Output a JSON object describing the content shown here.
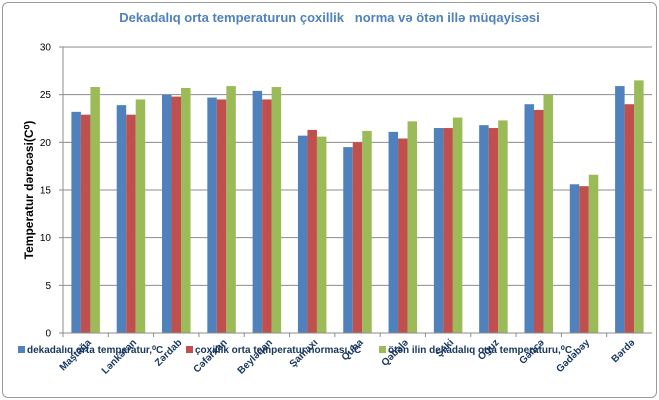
{
  "chart_data": {
    "type": "bar",
    "title": "Dekadalıq orta temperaturun çoxillik   norma və ötən illə müqayisəsi",
    "ylabel": "Temperatur dərəcəsi(C⁰)",
    "xlabel": "",
    "ylim": [
      0,
      30
    ],
    "yticks": [
      0,
      5,
      10,
      15,
      20,
      25,
      30
    ],
    "grid": true,
    "legend_position": "bottom",
    "categories": [
      "Maştağa",
      "Lənkəran",
      "Zərdab",
      "Cəfərxan",
      "Beyləqan",
      "Şamaxı",
      "Quba",
      "Qəbələ",
      "Şəki",
      "Oğuz",
      "Gəncə",
      "Gədəbəy",
      "Bərdə"
    ],
    "series": [
      {
        "name": "dekadalıq orta temperatur,⁰C",
        "color": "#4f81bd",
        "values": [
          23.2,
          23.9,
          25.0,
          24.7,
          25.4,
          20.7,
          19.5,
          21.1,
          21.5,
          21.8,
          24.0,
          15.6,
          25.9
        ]
      },
      {
        "name": "çoxillik orta temperatur norması,⁰C",
        "color": "#c0504d",
        "values": [
          22.9,
          22.9,
          24.8,
          24.5,
          24.5,
          21.3,
          20.0,
          20.4,
          21.5,
          21.5,
          23.4,
          15.4,
          24.0
        ]
      },
      {
        "name": "ötən ilin dekadalıq orta temperaturu,⁰C",
        "color": "#9bbb59",
        "values": [
          25.8,
          24.5,
          25.7,
          25.9,
          25.8,
          20.6,
          21.2,
          22.2,
          22.6,
          22.3,
          25.0,
          16.6,
          26.5
        ]
      }
    ]
  }
}
